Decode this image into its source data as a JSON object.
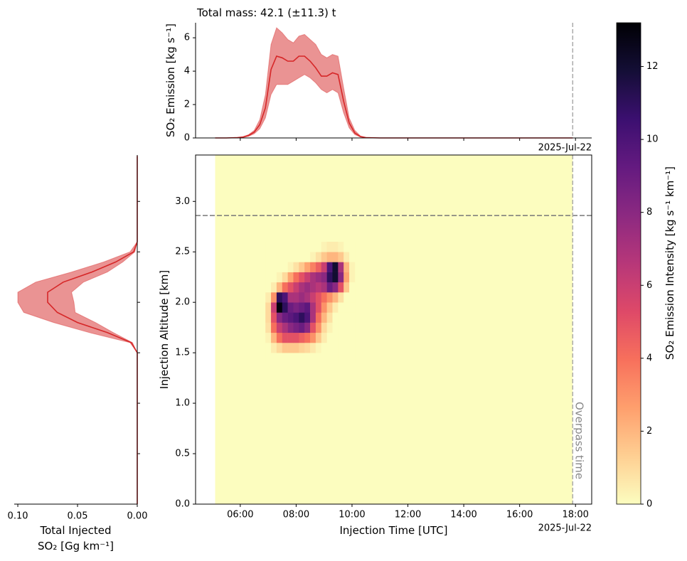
{
  "chart_data": [
    {
      "type": "line",
      "title": "Total mass: 42.1 (±11.3) t",
      "ylabel": "SO₂ Emission [kg s⁻¹]",
      "xdate": "2025-Jul-22",
      "x": [
        5.1,
        5.5,
        5.9,
        6.1,
        6.3,
        6.5,
        6.7,
        6.9,
        7.1,
        7.3,
        7.5,
        7.7,
        7.9,
        8.1,
        8.3,
        8.5,
        8.7,
        8.9,
        9.1,
        9.3,
        9.5,
        9.7,
        9.9,
        10.1,
        10.3,
        10.5,
        11,
        17.9
      ],
      "series": [
        {
          "color": "#d62728",
          "values": [
            0,
            0,
            0.02,
            0.05,
            0.15,
            0.35,
            0.8,
            1.8,
            4.1,
            4.9,
            4.8,
            4.6,
            4.6,
            4.9,
            4.9,
            4.6,
            4.2,
            3.7,
            3.7,
            3.9,
            3.8,
            2.2,
            0.9,
            0.3,
            0.08,
            0.02,
            0,
            0
          ]
        }
      ],
      "band": {
        "color": "#d62728",
        "lower": [
          0,
          0,
          0.01,
          0.03,
          0.1,
          0.25,
          0.55,
          1.2,
          2.6,
          3.2,
          3.2,
          3.2,
          3.4,
          3.6,
          3.8,
          3.6,
          3.3,
          2.9,
          2.7,
          2.9,
          2.7,
          1.5,
          0.6,
          0.2,
          0.05,
          0.01,
          0,
          0
        ],
        "upper": [
          0,
          0,
          0.03,
          0.08,
          0.2,
          0.45,
          1.1,
          2.6,
          5.6,
          6.6,
          6.3,
          5.9,
          5.7,
          6.1,
          6.2,
          5.9,
          5.6,
          5.0,
          4.8,
          5.0,
          4.9,
          3.0,
          1.2,
          0.45,
          0.12,
          0.03,
          0,
          0
        ]
      },
      "xlim": [
        4.4,
        18.58
      ],
      "ylim": [
        0,
        6.9
      ],
      "xticks": [
        6,
        8,
        10,
        12,
        14,
        16,
        18
      ],
      "yticks": [
        0,
        2,
        4,
        6
      ],
      "vline": 17.9
    },
    {
      "type": "heatmap",
      "xlabel": "Injection Time [UTC]",
      "ylabel": "Injection Altitude [km]",
      "xdate": "2025-Jul-22",
      "colorbar_label": "SO₂ Emission Intensity [kg s⁻¹ km⁻¹]",
      "colormap": "magma_r",
      "zlim": [
        0,
        13.2
      ],
      "zticks": [
        0,
        2,
        4,
        6,
        8,
        10,
        12
      ],
      "data_extent_x": [
        5.1,
        17.9
      ],
      "x_edges": [
        6.5,
        6.7,
        6.9,
        7.1,
        7.3,
        7.5,
        7.7,
        7.9,
        8.1,
        8.3,
        8.5,
        8.7,
        8.9,
        9.1,
        9.3,
        9.5,
        9.7,
        9.9,
        10.1
      ],
      "y_edges": [
        1.4,
        1.5,
        1.6,
        1.7,
        1.8,
        1.9,
        2.0,
        2.1,
        2.2,
        2.3,
        2.4,
        2.5,
        2.6
      ],
      "z": [
        [
          0,
          0,
          0,
          0,
          0,
          0,
          0,
          0,
          0,
          0,
          0,
          0,
          0,
          0,
          0,
          0,
          0,
          0
        ],
        [
          0,
          0,
          0,
          0.5,
          1,
          1.5,
          1.5,
          1.5,
          1.2,
          1,
          0.6,
          0.2,
          0,
          0,
          0,
          0,
          0,
          0
        ],
        [
          0,
          0,
          0.3,
          2,
          4,
          5,
          5,
          5,
          4.5,
          4,
          3,
          1.5,
          0.5,
          0,
          0,
          0,
          0,
          0
        ],
        [
          0,
          0,
          0.8,
          4,
          6,
          7,
          8,
          8.5,
          9,
          8,
          5,
          3,
          1,
          0.3,
          0,
          0,
          0,
          0
        ],
        [
          0,
          0,
          1,
          5,
          8,
          9,
          9.5,
          10,
          11,
          10,
          7,
          4,
          2,
          0.8,
          0,
          0,
          0,
          0
        ],
        [
          0,
          0,
          1,
          6,
          13,
          11,
          9,
          8.5,
          9,
          9.5,
          7,
          5,
          3,
          1.5,
          0.5,
          0,
          0,
          0
        ],
        [
          0,
          0,
          0.5,
          3,
          11,
          10,
          7,
          7,
          7.5,
          7,
          6,
          5,
          4,
          3,
          2,
          0.8,
          0,
          0
        ],
        [
          0,
          0,
          0,
          0.5,
          2,
          4,
          5,
          6,
          7,
          7.5,
          7,
          6.5,
          7,
          9,
          8,
          5,
          1.5,
          0
        ],
        [
          0,
          0,
          0,
          0,
          0.3,
          1,
          2.5,
          4,
          5,
          6,
          7,
          7.5,
          8,
          11,
          12,
          8,
          2.5,
          0.3
        ],
        [
          0,
          0,
          0,
          0,
          0,
          0,
          0.3,
          0.8,
          1.5,
          2.5,
          3.5,
          4.5,
          6,
          10,
          12,
          7,
          2,
          0.3
        ],
        [
          0,
          0,
          0,
          0,
          0,
          0,
          0,
          0,
          0,
          0,
          0.3,
          0.8,
          1.5,
          2,
          2,
          1.5,
          0.5,
          0
        ],
        [
          0,
          0,
          0,
          0,
          0,
          0,
          0,
          0,
          0,
          0,
          0,
          0,
          0.3,
          0.5,
          0.5,
          0.3,
          0,
          0
        ]
      ],
      "xlim": [
        4.4,
        18.58
      ],
      "ylim": [
        0,
        3.46
      ],
      "xticks": [
        {
          "value": 6,
          "label": "06:00"
        },
        {
          "value": 8,
          "label": "08:00"
        },
        {
          "value": 10,
          "label": "10:00"
        },
        {
          "value": 12,
          "label": "12:00"
        },
        {
          "value": 14,
          "label": "14:00"
        },
        {
          "value": 16,
          "label": "16:00"
        },
        {
          "value": 18,
          "label": "18:00"
        }
      ],
      "yticks": [
        {
          "value": 0,
          "label": "0.0"
        },
        0.5,
        {
          "value": 1,
          "label": "1.0"
        },
        1.5,
        {
          "value": 2,
          "label": "2.0"
        },
        2.5,
        {
          "value": 3,
          "label": "3.0"
        }
      ],
      "hline": 2.86,
      "vline": {
        "x": 17.9,
        "label": "Overpass time"
      }
    },
    {
      "type": "line",
      "orientation": "horizontal",
      "xlabel": [
        "Total Injected",
        "SO₂ [Gg km⁻¹]"
      ],
      "y": [
        0,
        1.5,
        1.6,
        1.7,
        1.8,
        1.9,
        2.0,
        2.1,
        2.2,
        2.3,
        2.4,
        2.5,
        2.6,
        3.45
      ],
      "series": [
        {
          "color": "#d62728",
          "values": [
            0,
            0,
            0.005,
            0.025,
            0.05,
            0.067,
            0.075,
            0.075,
            0.062,
            0.038,
            0.018,
            0.003,
            0,
            0
          ]
        }
      ],
      "band": {
        "color": "#d62728",
        "lower": [
          0,
          0,
          0.004,
          0.02,
          0.035,
          0.052,
          0.053,
          0.055,
          0.045,
          0.025,
          0.012,
          0.002,
          0,
          0
        ],
        "upper": [
          0,
          0,
          0.006,
          0.04,
          0.07,
          0.095,
          0.1,
          0.1,
          0.085,
          0.055,
          0.028,
          0.006,
          0,
          0
        ]
      },
      "xlim": [
        0.103,
        0
      ],
      "ylim": [
        0,
        3.46
      ],
      "xticks": [
        {
          "value": 0.1,
          "label": "0.10"
        },
        0.05,
        {
          "value": 0,
          "label": "0.00"
        }
      ],
      "yticks": [
        0.5,
        1,
        1.5,
        2,
        2.5,
        3
      ]
    }
  ]
}
